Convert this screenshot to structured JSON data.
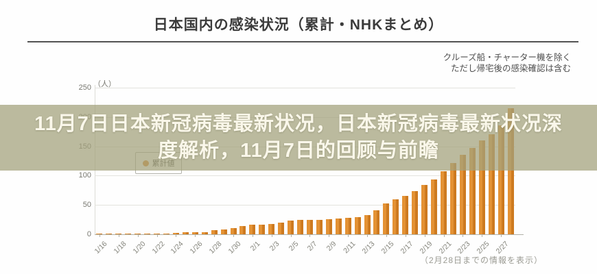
{
  "header": {
    "title": "日本国内の感染状況（累計・NHKまとめ）",
    "note_line1": "クルーズ船・チャーター機を除く",
    "note_line2": "ただし帰宅後の感染確認は含む"
  },
  "overlay": {
    "line1": "11月7日日本新冠病毒最新状况，日本新冠病毒最新状况深",
    "line2": "度解析，11月7日的回顾与前瞻",
    "bg_color": "#a3a27c",
    "text_color": "#faf7ea"
  },
  "legend": {
    "label": "累計値",
    "dot_color": "#dc8628"
  },
  "chart_data": {
    "type": "bar",
    "title": "日本国内の感染状況（累計・NHKまとめ）",
    "unit_label": "（人）",
    "footnote": "（2月28日までの情報を表示）",
    "bar_color": "#dc8628",
    "ylim": [
      0,
      250
    ],
    "yticks": [
      0,
      50,
      100,
      150,
      200,
      250
    ],
    "grid": true,
    "legend_position": "left-middle",
    "x": [
      "1/16",
      "1/17",
      "1/18",
      "1/19",
      "1/20",
      "1/21",
      "1/22",
      "1/23",
      "1/24",
      "1/25",
      "1/26",
      "1/27",
      "1/28",
      "1/29",
      "1/30",
      "1/31",
      "2/1",
      "2/2",
      "2/3",
      "2/4",
      "2/5",
      "2/6",
      "2/7",
      "2/8",
      "2/9",
      "2/10",
      "2/11",
      "2/12",
      "2/13",
      "2/14",
      "2/15",
      "2/16",
      "2/17",
      "2/18",
      "2/19",
      "2/20",
      "2/21",
      "2/22",
      "2/23",
      "2/24",
      "2/25",
      "2/26",
      "2/27",
      "2/28"
    ],
    "values": [
      1,
      1,
      1,
      1,
      1,
      1,
      1,
      1,
      2,
      3,
      4,
      4,
      7,
      8,
      11,
      14,
      16,
      16,
      17,
      20,
      23,
      25,
      25,
      25,
      26,
      27,
      28,
      29,
      33,
      41,
      53,
      59,
      66,
      74,
      84,
      94,
      108,
      122,
      135,
      147,
      160,
      171,
      186,
      215
    ],
    "x_label_every": 2
  }
}
